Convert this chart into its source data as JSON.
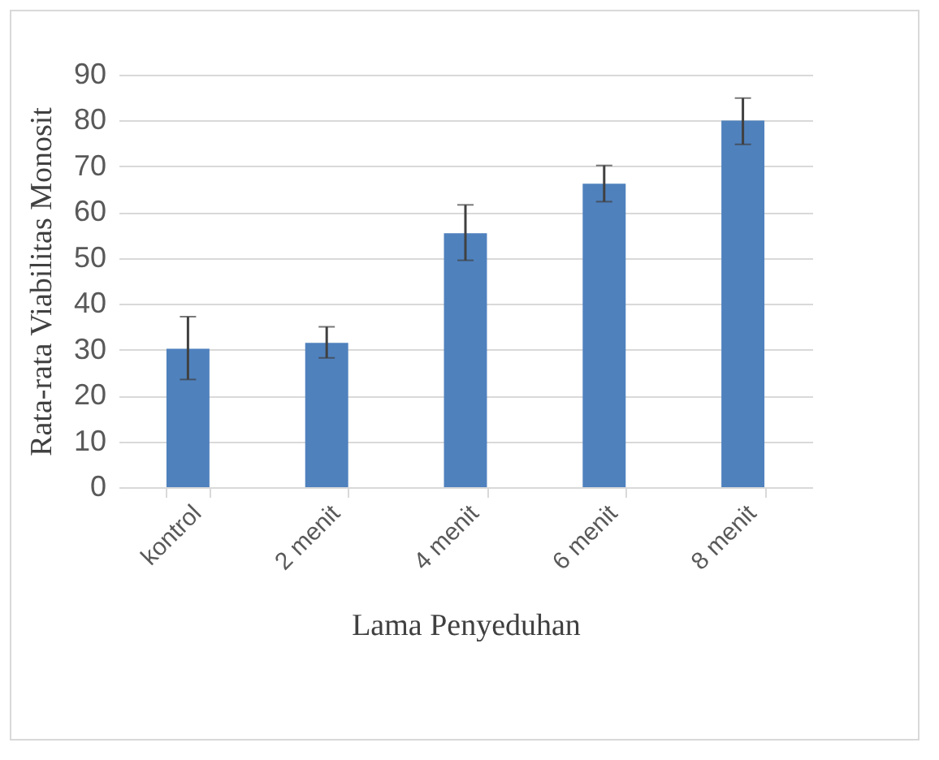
{
  "chart_data": {
    "type": "bar",
    "xlabel": "Lama Penyeduhan",
    "ylabel": "Rata-rata Viabilitas Monosit",
    "categories": [
      "kontrol",
      "2 menit",
      "4 menit",
      "6 menit",
      "8 menit"
    ],
    "values": [
      30.2,
      31.5,
      55.4,
      66.2,
      80.0
    ],
    "errors": [
      [
        23.5,
        37.2
      ],
      [
        28.2,
        35.0
      ],
      [
        49.5,
        61.6
      ],
      [
        62.3,
        70.2
      ],
      [
        74.8,
        84.9
      ]
    ],
    "color": "#4f81bd",
    "ylim": [
      0,
      90
    ],
    "yticks": [
      0,
      10,
      20,
      30,
      40,
      50,
      60,
      70,
      80,
      90
    ],
    "grid": "y"
  }
}
